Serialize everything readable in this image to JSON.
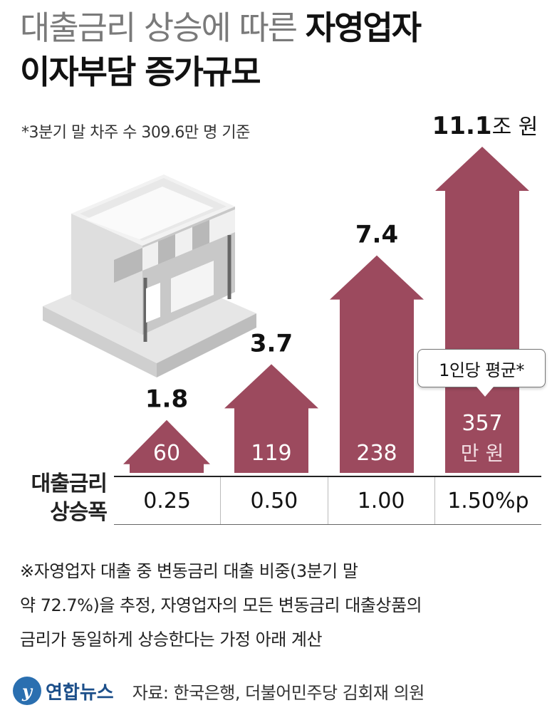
{
  "title": {
    "line1_light": "대출금리 상승에 따른 ",
    "line1_bold": "자영업자",
    "line2": "이자부담 증가규모"
  },
  "subtitle": "*3분기 말 차주 수 309.6만 명 기준",
  "colors": {
    "bar": "#9c4a5e",
    "building": "#d9d9d9",
    "awning_dark": "#555555"
  },
  "chart_data": {
    "type": "bar",
    "categories": [
      "0.25",
      "0.50",
      "1.00",
      "1.50%p"
    ],
    "series": [
      {
        "name": "",
        "values": [
          1.8,
          3.7,
          7.4,
          11.1
        ]
      },
      {
        "name": "1인당 평균*",
        "values": [
          60,
          119,
          238,
          357
        ]
      }
    ],
    "value_labels": [
      "1.8",
      "3.7",
      "7.4",
      "11.1"
    ],
    "top_unit": "조 원",
    "inner_labels": [
      "60",
      "119",
      "238",
      "357"
    ],
    "inner_unit": "만 원",
    "tooltip": "1인당 평균*",
    "row_label": [
      "대출금리",
      "상승폭"
    ]
  },
  "note": [
    "※자영업자 대출 중 변동금리 대출 비중(3분기 말",
    "약 72.7%)을 추정, 자영업자의 모든 변동금리 대출상품의",
    "금리가 동일하게 상승한다는 가정 아래 계산"
  ],
  "footer": {
    "logo_mark": "y",
    "logo_text": "연합뉴스",
    "source": "자료: 한국은행, 더불어민주당 김회재 의원"
  }
}
